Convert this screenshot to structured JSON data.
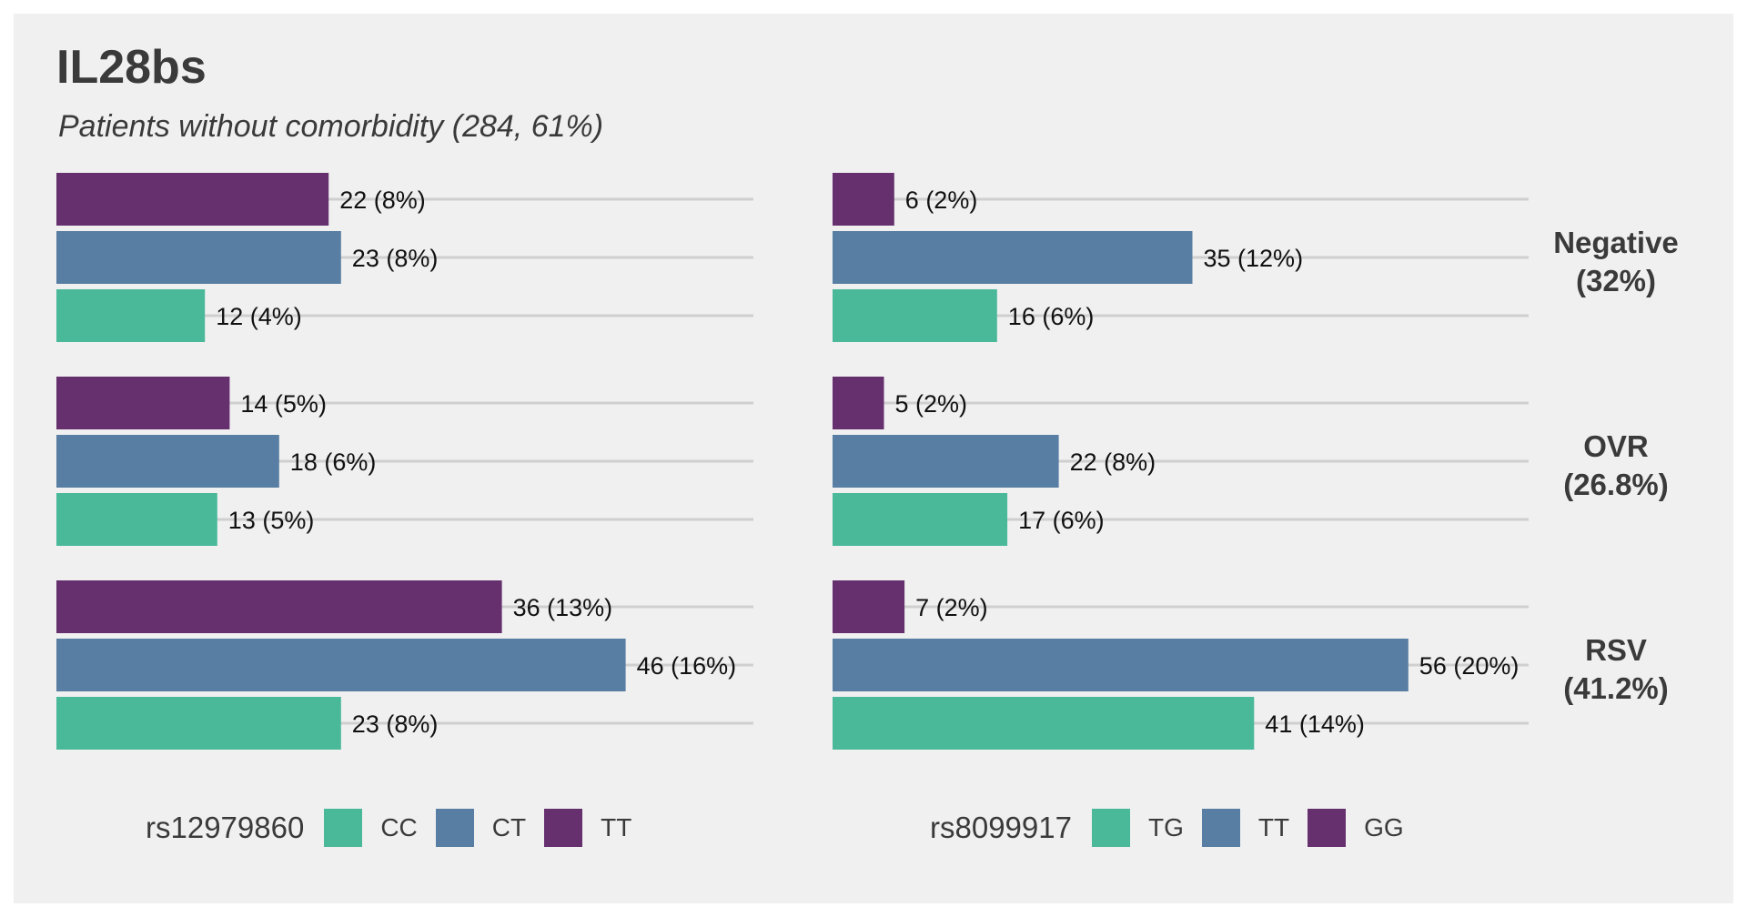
{
  "title": "IL28bs",
  "subtitle": "Patients without comorbidity (284, 61%)",
  "colors": {
    "CC": "#4ab99a",
    "CT": "#587ea3",
    "TT_left": "#66306f",
    "TG": "#4ab99a",
    "TT_right": "#587ea3",
    "GG": "#66306f"
  },
  "chart_data": [
    {
      "type": "bar",
      "orientation": "horizontal",
      "facet": "left",
      "snp": "rs12979860",
      "groups": [
        {
          "label": "Negative\n(32%)",
          "bars": [
            {
              "genotype": "TT",
              "value": 22,
              "label": "22 (8%)"
            },
            {
              "genotype": "CT",
              "value": 23,
              "label": "23 (8%)"
            },
            {
              "genotype": "CC",
              "value": 12,
              "label": "12 (4%)"
            }
          ]
        },
        {
          "label": "OVR\n(26.8%)",
          "bars": [
            {
              "genotype": "TT",
              "value": 14,
              "label": "14 (5%)"
            },
            {
              "genotype": "CT",
              "value": 18,
              "label": "18 (6%)"
            },
            {
              "genotype": "CC",
              "value": 13,
              "label": "13 (5%)"
            }
          ]
        },
        {
          "label": "RSV\n(41.2%)",
          "bars": [
            {
              "genotype": "TT",
              "value": 36,
              "label": "36 (13%)"
            },
            {
              "genotype": "CT",
              "value": 46,
              "label": "46 (16%)"
            },
            {
              "genotype": "CC",
              "value": 23,
              "label": "23 (8%)"
            }
          ]
        }
      ],
      "legend": {
        "title": "rs12979860",
        "entries": [
          "CC",
          "CT",
          "TT"
        ]
      }
    },
    {
      "type": "bar",
      "orientation": "horizontal",
      "facet": "right",
      "snp": "rs8099917",
      "groups": [
        {
          "label": "Negative\n(32%)",
          "bars": [
            {
              "genotype": "GG",
              "value": 6,
              "label": "6 (2%)"
            },
            {
              "genotype": "TT",
              "value": 35,
              "label": "35 (12%)"
            },
            {
              "genotype": "TG",
              "value": 16,
              "label": "16 (6%)"
            }
          ]
        },
        {
          "label": "OVR\n(26.8%)",
          "bars": [
            {
              "genotype": "GG",
              "value": 5,
              "label": "5 (2%)"
            },
            {
              "genotype": "TT",
              "value": 22,
              "label": "22 (8%)"
            },
            {
              "genotype": "TG",
              "value": 17,
              "label": "17 (6%)"
            }
          ]
        },
        {
          "label": "RSV\n(41.2%)",
          "bars": [
            {
              "genotype": "GG",
              "value": 7,
              "label": "7 (2%)"
            },
            {
              "genotype": "TT",
              "value": 56,
              "label": "56 (20%)"
            },
            {
              "genotype": "TG",
              "value": 41,
              "label": "41 (14%)"
            }
          ]
        }
      ],
      "legend": {
        "title": "rs8099917",
        "entries": [
          "TG",
          "TT",
          "GG"
        ]
      }
    }
  ],
  "row_labels": [
    {
      "line1": "Negative",
      "line2": "(32%)"
    },
    {
      "line1": "OVR",
      "line2": "(26.8%)"
    },
    {
      "line1": "RSV",
      "line2": "(41.2%)"
    }
  ]
}
